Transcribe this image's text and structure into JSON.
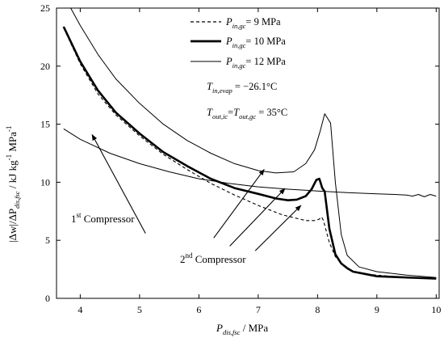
{
  "chart_data": {
    "type": "line",
    "xlabel": {
      "main": "P",
      "sub": "dis,fsc",
      "rest": " / MPa"
    },
    "ylabel": {
      "text": "|Δw|/ΔP",
      "sub": "dis,fsc",
      "rest": " / kJ kg",
      "sup": "-1",
      "rest2": " MPa",
      "sup2": "-1"
    },
    "xlim": [
      3.6,
      10.05
    ],
    "ylim": [
      0,
      25
    ],
    "xticks": [
      4,
      5,
      6,
      7,
      8,
      9,
      10
    ],
    "yticks": [
      0,
      5,
      10,
      15,
      20,
      25
    ],
    "legend": [
      {
        "prefix": "P",
        "sub": "in,gc",
        "value": "= 9 MPa",
        "style": "dashed"
      },
      {
        "prefix": "P",
        "sub": "in,gc",
        "value": "= 10 MPa",
        "style": "thick"
      },
      {
        "prefix": "P",
        "sub": "in,gc",
        "value": "= 12 MPa",
        "style": "thin"
      }
    ],
    "conditions": [
      {
        "parts": [
          [
            "T",
            ""
          ],
          [
            "in,evap",
            "sub"
          ],
          [
            " = −26.1°C",
            ""
          ]
        ]
      },
      {
        "parts": [
          [
            "T",
            ""
          ],
          [
            "out,ic",
            "sub"
          ],
          [
            "=",
            ""
          ],
          [
            "T",
            ""
          ],
          [
            "out,gc",
            "sub"
          ],
          [
            " = 35°C",
            ""
          ]
        ]
      }
    ],
    "annotations": {
      "first": {
        "pre": "1",
        "sup": "st",
        "post": " Compressor"
      },
      "second": {
        "pre": "2",
        "sup": "nd",
        "post": " Compressor"
      }
    },
    "series": [
      {
        "style": "dashed",
        "x": [
          3.72,
          4.0,
          4.3,
          4.6,
          5.0,
          5.4,
          5.8,
          6.2,
          6.6,
          7.0,
          7.4,
          7.8,
          7.95,
          8.02,
          8.07,
          8.1,
          8.2,
          8.3,
          8.4,
          8.5,
          8.6,
          8.8,
          9.0,
          9.5,
          10.0
        ],
        "y": [
          23.3,
          20.2,
          17.6,
          15.8,
          14.0,
          12.4,
          11.1,
          9.9,
          8.9,
          8.0,
          7.2,
          6.7,
          6.7,
          6.8,
          7.0,
          6.7,
          4.8,
          3.6,
          3.0,
          2.6,
          2.3,
          2.1,
          2.0,
          1.8,
          1.7
        ]
      },
      {
        "style": "thick",
        "x": [
          3.72,
          4.0,
          4.3,
          4.6,
          5.0,
          5.4,
          5.8,
          6.2,
          6.6,
          7.0,
          7.3,
          7.5,
          7.65,
          7.8,
          7.9,
          7.98,
          8.03,
          8.08,
          8.12,
          8.2,
          8.3,
          8.4,
          8.5,
          8.6,
          8.8,
          9.0,
          9.5,
          10.0
        ],
        "y": [
          23.4,
          20.4,
          17.9,
          16.0,
          14.2,
          12.6,
          11.4,
          10.3,
          9.5,
          9.0,
          8.6,
          8.45,
          8.5,
          8.8,
          9.4,
          10.2,
          10.3,
          9.5,
          9.2,
          6.0,
          3.8,
          3.0,
          2.6,
          2.3,
          2.1,
          1.9,
          1.8,
          1.7
        ]
      },
      {
        "style": "thin",
        "x": [
          3.84,
          4.0,
          4.3,
          4.6,
          5.0,
          5.4,
          5.8,
          6.2,
          6.6,
          7.0,
          7.3,
          7.6,
          7.8,
          7.95,
          8.05,
          8.12,
          8.17,
          8.22,
          8.3,
          8.4,
          8.5,
          8.7,
          9.0,
          9.5,
          10.0
        ],
        "y": [
          25.0,
          23.5,
          21.0,
          18.9,
          16.8,
          15.0,
          13.6,
          12.5,
          11.6,
          11.0,
          10.8,
          10.9,
          11.6,
          12.8,
          14.5,
          15.9,
          15.5,
          15.1,
          10.0,
          5.5,
          3.7,
          2.7,
          2.3,
          2.0,
          1.8
        ]
      },
      {
        "style": "compressor1",
        "x": [
          3.72,
          4.0,
          4.5,
          5.0,
          5.5,
          6.0,
          6.5,
          7.0,
          7.5,
          8.0,
          8.5,
          9.0,
          9.3,
          9.5,
          9.6,
          9.7,
          9.8,
          9.9,
          10.0
        ],
        "y": [
          14.6,
          13.7,
          12.5,
          11.6,
          10.9,
          10.3,
          9.9,
          9.6,
          9.4,
          9.25,
          9.1,
          9.0,
          8.95,
          8.9,
          8.8,
          8.95,
          8.75,
          8.95,
          8.8
        ]
      }
    ]
  }
}
